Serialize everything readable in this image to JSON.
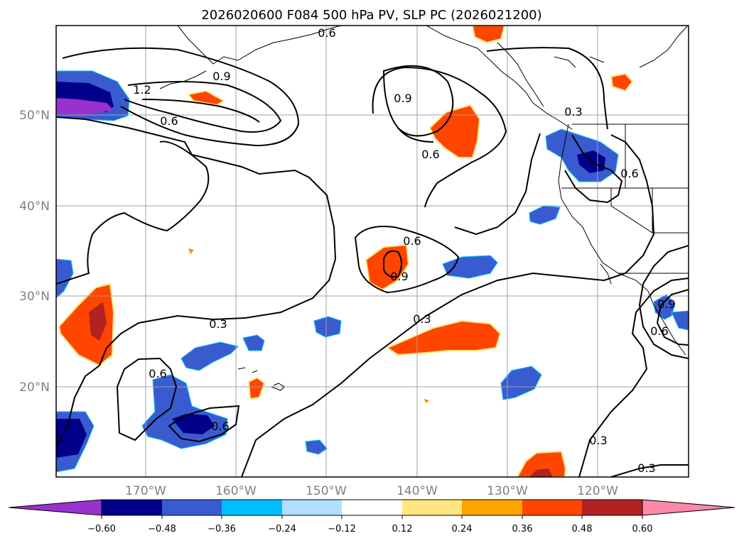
{
  "title": "2026020600 F084 500 hPa PV, SLP PC (2026021200)",
  "lon_labels": [
    "170°W",
    "160°W",
    "150°W",
    "140°W",
    "130°W",
    "120°W"
  ],
  "lat_labels": [
    "50°N",
    "40°N",
    "30°N",
    "20°N"
  ],
  "colorbar": {
    "colors": [
      "#9932cc",
      "#00008b",
      "#3a5bd0",
      "#00bfff",
      "#b0e0ff",
      "#ffffff",
      "#ffe680",
      "#ffa500",
      "#ff4500",
      "#b22222",
      "#ff88aa"
    ],
    "ticks": [
      "−0.60",
      "−0.48",
      "−0.36",
      "−0.24",
      "−0.12",
      "0.12",
      "0.24",
      "0.36",
      "0.48",
      "0.60"
    ]
  },
  "contour_labels": [
    "0.6",
    "0.9",
    "1.2",
    "0.6",
    "0.9",
    "0.6",
    "0.3",
    "0.6",
    "0.6",
    "0.9",
    "0.3",
    "0.3",
    "0.6",
    "0.6",
    "0.3",
    "0.3",
    "0.9",
    "0.6"
  ]
}
